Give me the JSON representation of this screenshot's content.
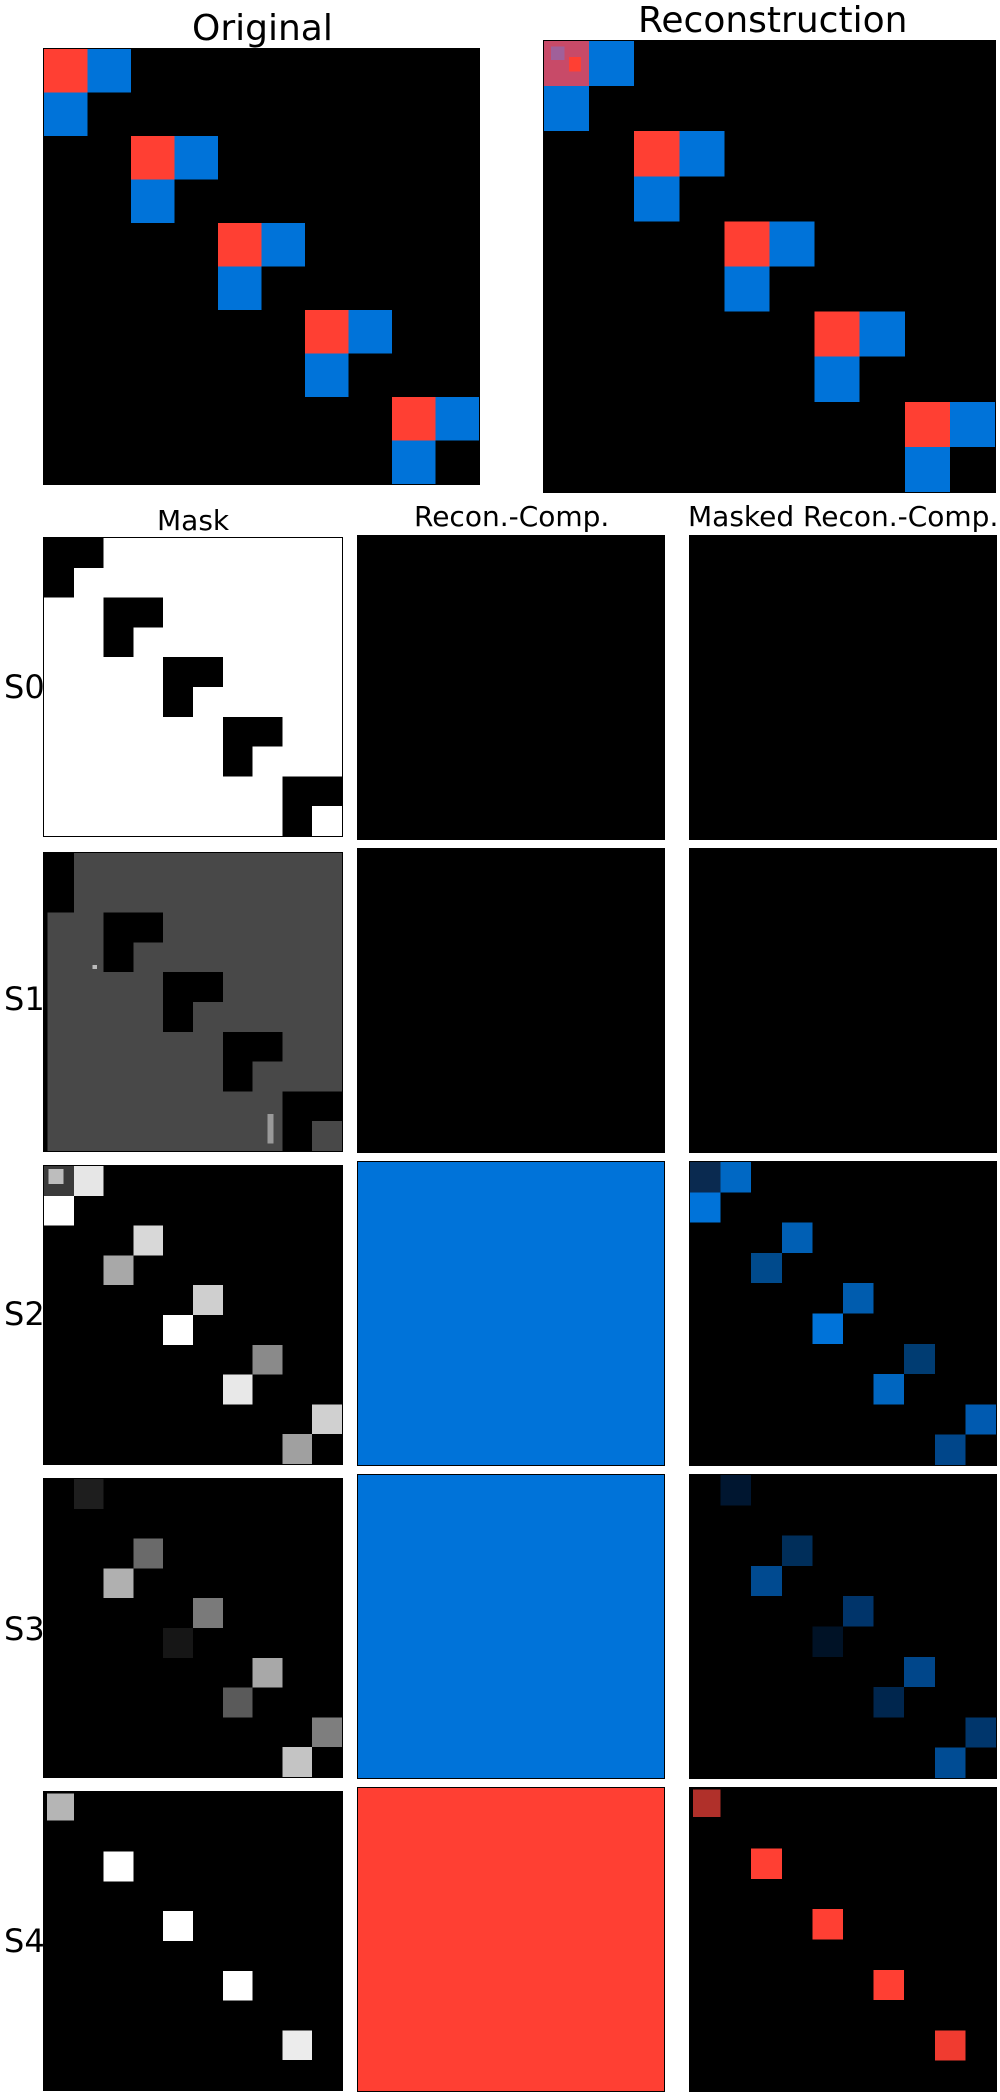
{
  "titles": {
    "original": "Original",
    "reconstruction": "Reconstruction"
  },
  "columns": {
    "mask": "Mask",
    "recon_comp": "Recon.-Comp.",
    "masked_recon_comp": "Masked Recon.-Comp."
  },
  "rows": [
    "S0",
    "S1",
    "S2",
    "S3",
    "S4"
  ],
  "colors": {
    "red": "#ff3f33",
    "blue": "#0073d9",
    "background": "#000000",
    "mask_gray": "#484848"
  }
}
